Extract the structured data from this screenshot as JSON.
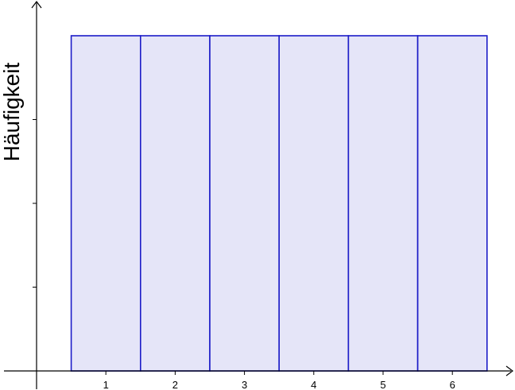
{
  "chart_data": {
    "type": "bar",
    "categories": [
      "1",
      "2",
      "3",
      "4",
      "5",
      "6"
    ],
    "values": [
      1,
      1,
      1,
      1,
      1,
      1
    ],
    "title": "",
    "xlabel": "",
    "ylabel": "Häufigkeit",
    "xlim": [
      0,
      7
    ],
    "ylim": [
      0,
      1.08
    ],
    "grid": false,
    "legend": "none",
    "y_tick_labels_shown": false
  },
  "colors": {
    "bar_fill": "#e5e5f8",
    "bar_stroke": "#1c1cc8",
    "axis": "#000000"
  }
}
